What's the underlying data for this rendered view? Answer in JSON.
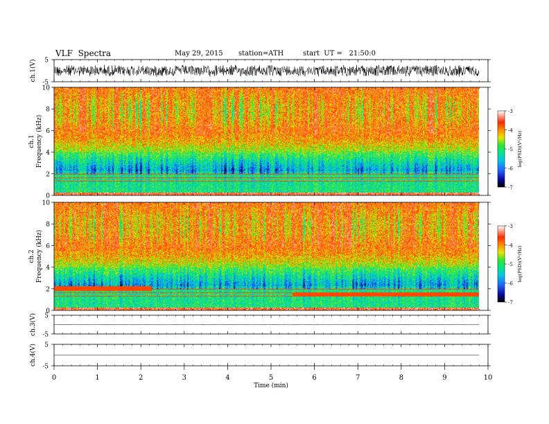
{
  "header": {
    "title": "VLF  Spectra",
    "date": "May 29, 2015",
    "station": "station=ATH",
    "start": "start  UT =   21:50:0"
  },
  "chart_data": {
    "type": "heatmap",
    "xlabel": "Time  (min)",
    "xlim": [
      0,
      10
    ],
    "x_ticks": [
      "0",
      "1",
      "2",
      "3",
      "4",
      "5",
      "6",
      "7",
      "8",
      "9",
      "10"
    ],
    "panels": [
      {
        "id": "ch1-wave",
        "type": "line",
        "ylabel": "ch.1(V)",
        "ylim": [
          -5,
          5
        ],
        "y_ticks": [
          "5",
          "-5"
        ]
      },
      {
        "id": "ch1-spec",
        "type": "heatmap",
        "ylabel_top": "ch.1",
        "ylabel": "Frequency  (kHz)",
        "ylim": [
          0,
          10
        ],
        "y_ticks": [
          "0",
          "2",
          "4",
          "6",
          "8",
          "10"
        ],
        "colorbar_label": "log(PSD)(V²/Hz)",
        "colorbar_ticks": [
          "-3",
          "-4",
          "-5",
          "-6",
          "-7"
        ],
        "clim": [
          -7,
          -3
        ]
      },
      {
        "id": "ch2-spec",
        "type": "heatmap",
        "ylabel_top": "ch.2",
        "ylabel": "Frequency  (kHz)",
        "ylim": [
          0,
          10
        ],
        "y_ticks": [
          "0",
          "2",
          "4",
          "6",
          "8",
          "10"
        ],
        "colorbar_label": "log(PSD)(V²/Hz)",
        "colorbar_ticks": [
          "-3",
          "-4",
          "-5",
          "-6",
          "-7"
        ],
        "clim": [
          -7,
          -3
        ]
      },
      {
        "id": "ch3-wave",
        "type": "line",
        "ylabel": "ch.3(V)",
        "ylim": [
          -5,
          5
        ],
        "y_ticks": [
          "5",
          "-5"
        ]
      },
      {
        "id": "ch4-wave",
        "type": "line",
        "ylabel": "ch.4(V)",
        "ylim": [
          -5,
          5
        ],
        "y_ticks": [
          "5",
          "-5"
        ]
      }
    ],
    "data_end_min": 9.8,
    "colormap": [
      "#000000",
      "#0a0aa0",
      "#1e64ff",
      "#00c8e6",
      "#00e68c",
      "#32e632",
      "#e6e600",
      "#ff8c00",
      "#ff2a00",
      "#ffffff"
    ]
  }
}
